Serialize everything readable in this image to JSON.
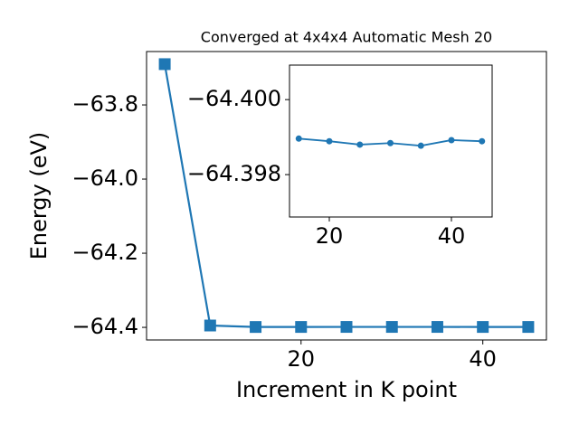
{
  "chart_data": [
    {
      "type": "line",
      "title": "Converged at 4x4x4 Automatic Mesh 20",
      "x_label": "Increment in K point",
      "y_label": "Energy (eV)",
      "x": [
        5,
        10,
        15,
        20,
        25,
        30,
        35,
        40,
        45
      ],
      "series": [
        {
          "color": "#1f77b4",
          "marker": "square",
          "values": [
            -63.69,
            -64.395,
            -64.399,
            -64.3989,
            -64.3988,
            -64.3988,
            -64.3988,
            -64.3989,
            -64.3989
          ]
        }
      ],
      "xlim": [
        3,
        47
      ],
      "ylim": [
        -64.434,
        -63.656
      ],
      "y_inverted": false,
      "xticks": [
        20,
        40
      ],
      "yticks": [
        {
          "value": -63.8,
          "label": "−63.8"
        },
        {
          "value": -64.0,
          "label": "−64.0"
        },
        {
          "value": -64.2,
          "label": "−64.2"
        },
        {
          "value": -64.4,
          "label": "−64.4"
        }
      ]
    },
    {
      "type": "line",
      "x": [
        15,
        20,
        25,
        30,
        35,
        40,
        45
      ],
      "series": [
        {
          "color": "#1f77b4",
          "marker": "circle",
          "values": [
            -64.39896,
            -64.39889,
            -64.3988,
            -64.39884,
            -64.39877,
            -64.39892,
            -64.39889
          ]
        }
      ],
      "xlim": [
        13.48,
        46.67
      ],
      "ylim": [
        -64.40092,
        -64.39687
      ],
      "y_inverted": true,
      "xticks": [
        20,
        40
      ],
      "yticks": [
        {
          "value": -64.4,
          "label": "−64.400"
        },
        {
          "value": -64.398,
          "label": "−64.398"
        }
      ]
    }
  ]
}
